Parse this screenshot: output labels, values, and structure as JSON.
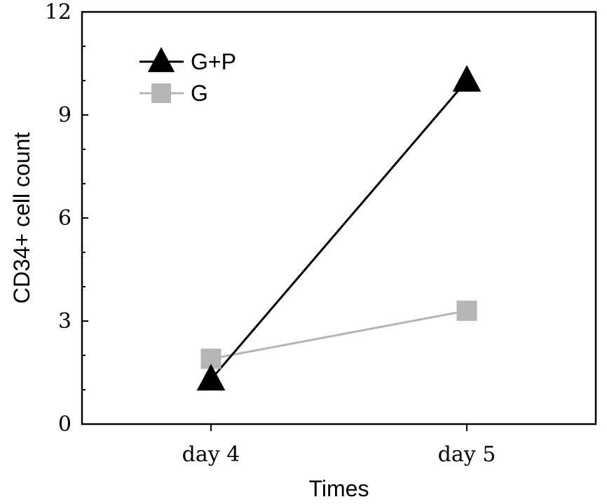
{
  "chart_data": {
    "type": "line",
    "xlabel": "Times",
    "ylabel": "CD34+ cell count",
    "categories": [
      "day 4",
      "day 5"
    ],
    "ylim": [
      0,
      12
    ],
    "yticks": [
      0,
      3,
      6,
      9,
      12
    ],
    "y_minor_step": 1,
    "grid": false,
    "legend_position": "top-left",
    "series": [
      {
        "name": "G+P",
        "values": [
          1.3,
          10.0
        ],
        "color": "#000000",
        "marker": "triangle"
      },
      {
        "name": "G",
        "values": [
          1.9,
          3.3
        ],
        "color": "#b5b5b5",
        "marker": "square"
      }
    ]
  }
}
